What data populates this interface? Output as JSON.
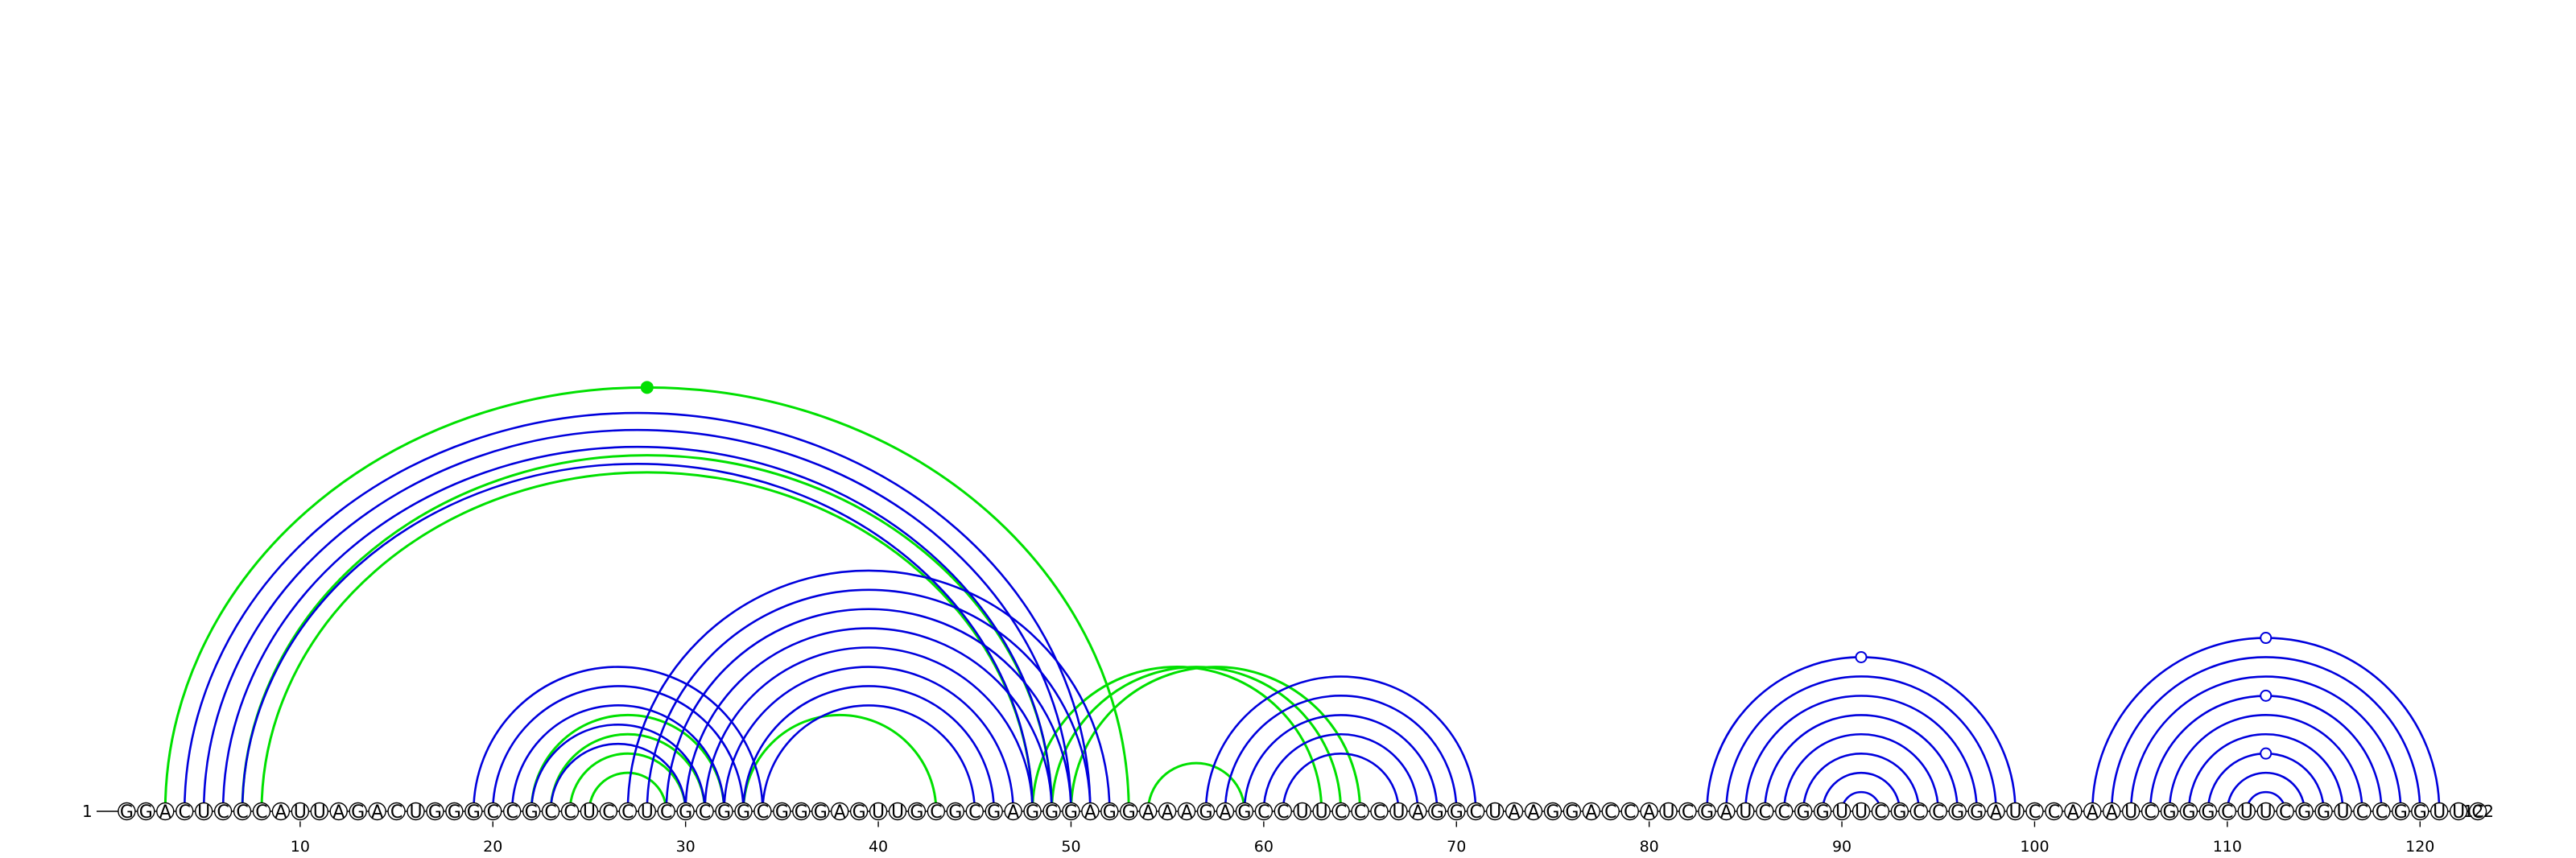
{
  "sequence": "GGACUCCCAUUAGACUGGGCCGCCUCCUCGCGGCGGGAGUUGCGCGAGGGAGGAAAGAGCCUUCCCUAGGCUAAGGACCAUCGAUCCGGUUCGCCGGAUCCAAAUCGGGCUUCGGUCCGGUUC",
  "labels": {
    "start": "1",
    "end": "122"
  },
  "ticks": [
    10,
    20,
    30,
    40,
    50,
    60,
    70,
    80,
    90,
    100,
    110,
    120
  ],
  "colors": {
    "structure_a": "#0000dd",
    "structure_b": "#00e000",
    "nucleotide_stroke": "#000000"
  },
  "arcs": {
    "structure_a": [
      [
        4,
        51
      ],
      [
        5,
        50
      ],
      [
        6,
        49
      ],
      [
        7,
        48
      ],
      [
        19,
        34
      ],
      [
        20,
        33
      ],
      [
        21,
        32
      ],
      [
        22,
        31
      ],
      [
        23,
        30
      ],
      [
        27,
        52
      ],
      [
        28,
        51
      ],
      [
        29,
        50
      ],
      [
        30,
        49
      ],
      [
        31,
        48
      ],
      [
        32,
        47
      ],
      [
        33,
        46
      ],
      [
        34,
        45
      ],
      [
        57,
        71
      ],
      [
        58,
        70
      ],
      [
        59,
        69
      ],
      [
        60,
        68
      ],
      [
        61,
        67
      ],
      [
        83,
        99
      ],
      [
        84,
        98
      ],
      [
        85,
        97
      ],
      [
        86,
        96
      ],
      [
        87,
        95
      ],
      [
        88,
        94
      ],
      [
        89,
        93
      ],
      [
        90,
        92
      ],
      [
        103,
        121
      ],
      [
        104,
        120
      ],
      [
        105,
        119
      ],
      [
        106,
        118
      ],
      [
        107,
        117
      ],
      [
        108,
        116
      ],
      [
        109,
        115
      ],
      [
        110,
        114
      ],
      [
        111,
        113
      ]
    ],
    "structure_b": [
      [
        3,
        53
      ],
      [
        7,
        49
      ],
      [
        8,
        48
      ],
      [
        22,
        32
      ],
      [
        23,
        31
      ],
      [
        24,
        30
      ],
      [
        25,
        29
      ],
      [
        33,
        43
      ],
      [
        48,
        63
      ],
      [
        49,
        64
      ],
      [
        50,
        65
      ],
      [
        54,
        59
      ]
    ]
  },
  "dots": [
    {
      "pos": 28,
      "arc": "structure_b",
      "style": "filled"
    },
    {
      "pos": 91,
      "arc": "structure_a",
      "style": "open"
    },
    {
      "pos": 112,
      "arc": "structure_a",
      "style": "open"
    },
    {
      "pos": 112,
      "arc": "structure_a",
      "style": "open"
    },
    {
      "pos": 112,
      "arc": "structure_a",
      "style": "open"
    }
  ]
}
